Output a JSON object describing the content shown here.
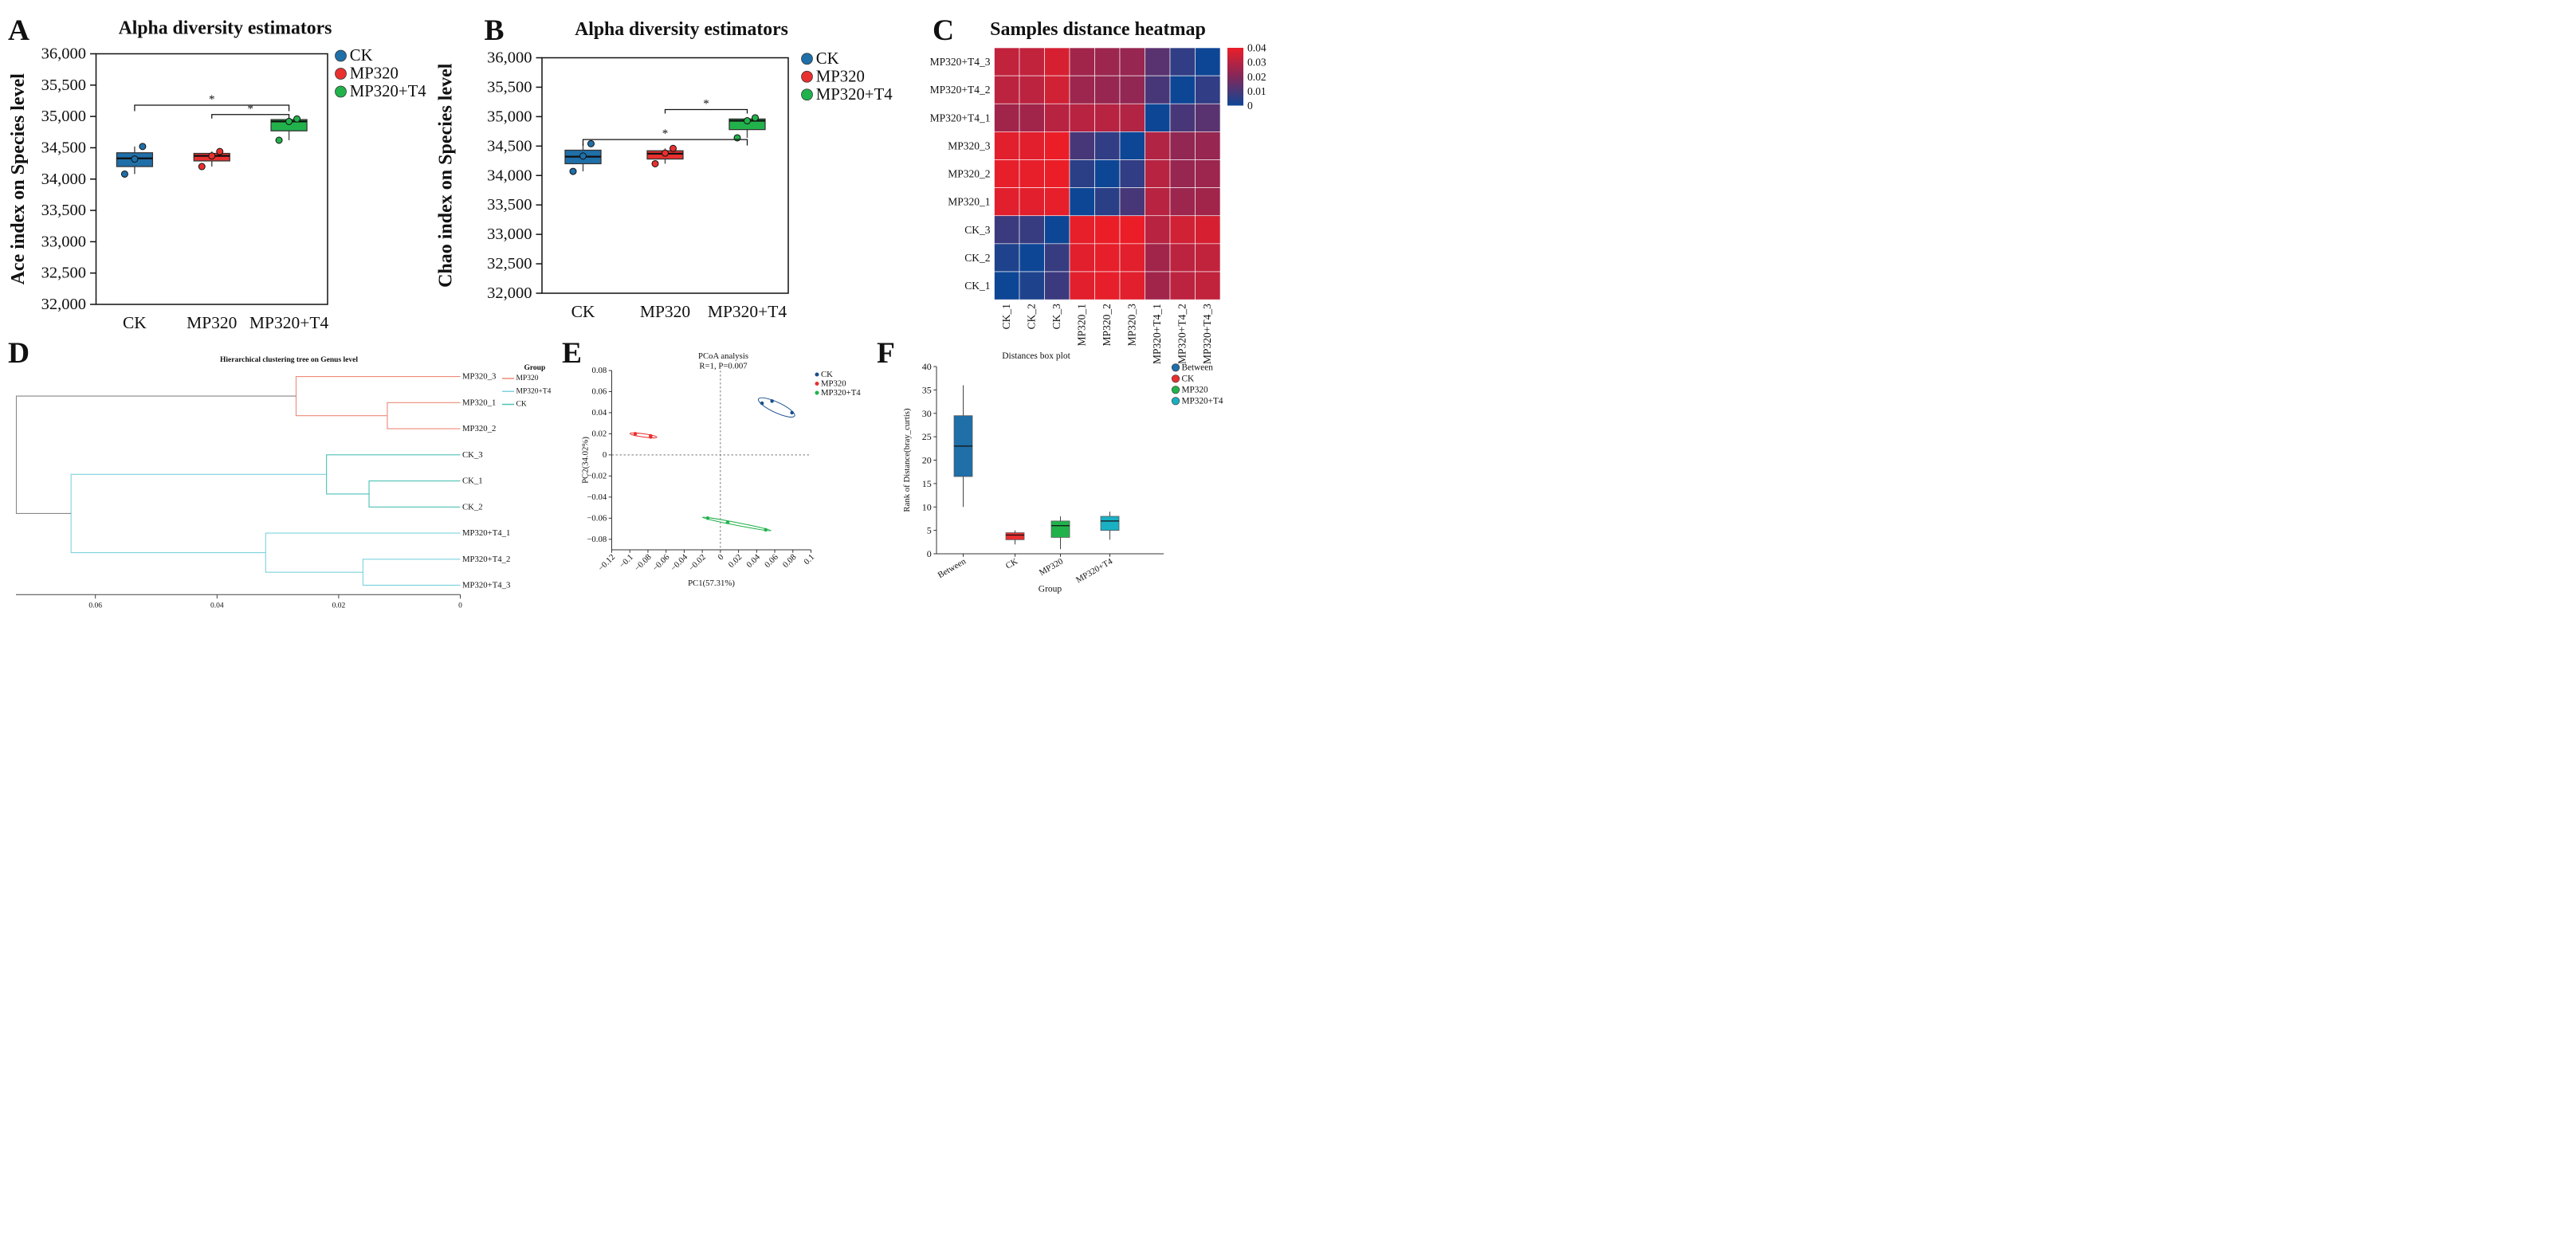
{
  "chart_data": [
    {
      "panel": "A",
      "type": "box",
      "title": "Alpha diversity estimators",
      "ylabel": "Ace index on Species level",
      "xlabel": "",
      "ylim": [
        32000,
        36000
      ],
      "y_ticks": [
        "32,000",
        "32,500",
        "33,000",
        "33,500",
        "34,000",
        "34,500",
        "35,000",
        "35,500",
        "36,000"
      ],
      "categories": [
        "CK",
        "MP320",
        "MP320+T4"
      ],
      "legend": [
        "CK",
        "MP320",
        "MP320+T4"
      ],
      "colors": [
        "#1f6fa8",
        "#e8302f",
        "#22b24c"
      ],
      "boxes": [
        {
          "group": "CK",
          "min": 34080,
          "q1": 34200,
          "median": 34330,
          "q3": 34420,
          "max": 34520,
          "points": [
            34080,
            34320,
            34520
          ]
        },
        {
          "group": "MP320",
          "min": 34200,
          "q1": 34290,
          "median": 34370,
          "q3": 34410,
          "max": 34440,
          "points": [
            34200,
            34370,
            34440
          ]
        },
        {
          "group": "MP320+T4",
          "min": 34620,
          "q1": 34770,
          "median": 34920,
          "q3": 34950,
          "max": 34960,
          "points": [
            34620,
            34920,
            34960
          ]
        }
      ],
      "annotations": [
        {
          "from": "CK",
          "to": "MP320+T4",
          "label": "*"
        },
        {
          "from": "MP320",
          "to": "MP320+T4",
          "label": "*"
        }
      ]
    },
    {
      "panel": "B",
      "type": "box",
      "title": "Alpha diversity estimators",
      "ylabel": "Chao index on Species level",
      "xlabel": "",
      "ylim": [
        32000,
        36000
      ],
      "y_ticks": [
        "32,000",
        "32,500",
        "33,000",
        "33,500",
        "34,000",
        "34,500",
        "35,000",
        "35,500",
        "36,000"
      ],
      "categories": [
        "CK",
        "MP320",
        "MP320+T4"
      ],
      "legend": [
        "CK",
        "MP320",
        "MP320+T4"
      ],
      "colors": [
        "#1f6fa8",
        "#e8302f",
        "#22b24c"
      ],
      "boxes": [
        {
          "group": "CK",
          "min": 34070,
          "q1": 34200,
          "median": 34320,
          "q3": 34430,
          "max": 34540,
          "points": [
            34070,
            34330,
            34540
          ]
        },
        {
          "group": "MP320",
          "min": 34200,
          "q1": 34280,
          "median": 34370,
          "q3": 34420,
          "max": 34460,
          "points": [
            34200,
            34380,
            34460
          ]
        },
        {
          "group": "MP320+T4",
          "min": 34640,
          "q1": 34780,
          "median": 34930,
          "q3": 34960,
          "max": 34980,
          "points": [
            34640,
            34930,
            34980
          ]
        }
      ],
      "annotations": [
        {
          "from": "CK",
          "to": "MP320+T4",
          "label": "*"
        },
        {
          "from": "MP320",
          "to": "MP320+T4",
          "label": "*"
        }
      ]
    },
    {
      "panel": "C",
      "type": "heatmap",
      "title": "Samples distance heatmap",
      "rows_top_to_bottom": [
        "MP320+T4_3",
        "MP320+T4_2",
        "MP320+T4_1",
        "MP320_3",
        "MP320_2",
        "MP320_1",
        "CK_3",
        "CK_2",
        "CK_1"
      ],
      "columns": [
        "CK_1",
        "CK_2",
        "CK_3",
        "MP320_1",
        "MP320_2",
        "MP320_3",
        "MP320+T4_1",
        "MP320+T4_2",
        "MP320+T4_3"
      ],
      "values": [
        [
          0.032,
          0.032,
          0.036,
          0.026,
          0.025,
          0.024,
          0.013,
          0.006,
          0.0
        ],
        [
          0.031,
          0.031,
          0.035,
          0.025,
          0.024,
          0.023,
          0.01,
          0.0,
          0.006
        ],
        [
          0.026,
          0.026,
          0.03,
          0.03,
          0.03,
          0.029,
          0.0,
          0.01,
          0.013
        ],
        [
          0.038,
          0.038,
          0.04,
          0.01,
          0.006,
          0.0,
          0.029,
          0.023,
          0.024
        ],
        [
          0.039,
          0.039,
          0.04,
          0.005,
          0.0,
          0.006,
          0.03,
          0.024,
          0.025
        ],
        [
          0.038,
          0.038,
          0.039,
          0.0,
          0.005,
          0.01,
          0.03,
          0.025,
          0.026
        ],
        [
          0.008,
          0.007,
          0.0,
          0.039,
          0.04,
          0.04,
          0.03,
          0.035,
          0.036
        ],
        [
          0.003,
          0.0,
          0.007,
          0.038,
          0.039,
          0.038,
          0.026,
          0.031,
          0.032
        ],
        [
          0.0,
          0.003,
          0.008,
          0.038,
          0.039,
          0.038,
          0.026,
          0.031,
          0.032
        ]
      ],
      "color_scale_min": 0,
      "color_scale_max": 0.04,
      "colorbar_ticks": [
        "0.04",
        "0.03",
        "0.02",
        "0.01",
        "0"
      ]
    },
    {
      "panel": "D",
      "type": "dendrogram",
      "title": "Hierarchical clustering tree on Genus level",
      "legend_title": "Group",
      "legend": [
        {
          "label": "MP320",
          "color": "#ef8a7a"
        },
        {
          "label": "MP320+T4",
          "color": "#7fd3dd"
        },
        {
          "label": "CK",
          "color": "#4fc1b6"
        }
      ],
      "leaves": [
        "MP320_3",
        "MP320_1",
        "MP320_2",
        "CK_3",
        "CK_1",
        "CK_2",
        "MP320+T4_1",
        "MP320+T4_2",
        "MP320+T4_3"
      ],
      "x_ticks": [
        "0.06",
        "0.04",
        "0.02",
        "0"
      ],
      "xlim": [
        0.073,
        0
      ],
      "merges": [
        {
          "a": "MP320_1",
          "b": "MP320_2",
          "height": 0.012,
          "color": "#ef8a7a"
        },
        {
          "a": "MP320_3",
          "b": "(MP320_1,MP320_2)",
          "height": 0.027,
          "color": "#ef8a7a"
        },
        {
          "a": "CK_1",
          "b": "CK_2",
          "height": 0.015,
          "color": "#4fc1b6"
        },
        {
          "a": "CK_3",
          "b": "(CK_1,CK_2)",
          "height": 0.022,
          "color": "#4fc1b6"
        },
        {
          "a": "MP320+T4_2",
          "b": "MP320+T4_3",
          "height": 0.016,
          "color": "#7fd3dd"
        },
        {
          "a": "MP320+T4_1",
          "b": "(MP320+T4_2,MP320+T4_3)",
          "height": 0.032,
          "color": "#7fd3dd"
        },
        {
          "a": "CK",
          "b": "MP320+T4",
          "height": 0.064,
          "color": "#7fd3dd"
        },
        {
          "a": "MP320",
          "b": "CK+MP320+T4",
          "height": 0.073,
          "color": "#888888"
        }
      ]
    },
    {
      "panel": "E",
      "type": "scatter",
      "title": "PCoA analysis",
      "subtitle": "R=1, P=0.007",
      "xlabel": "PC1(57.31%)",
      "ylabel": "PC2(34.02%)",
      "xlim": [
        -0.12,
        0.1
      ],
      "ylim": [
        -0.09,
        0.08
      ],
      "x_ticks": [
        "−0.12",
        "−0.1",
        "−0.08",
        "−0.06",
        "−0.04",
        "−0.02",
        "0",
        "0.02",
        "0.04",
        "0.06",
        "0.08",
        "0.1"
      ],
      "y_ticks": [
        "0.08",
        "0.06",
        "0.04",
        "0.02",
        "0",
        "−0.02",
        "−0.04",
        "−0.06",
        "−0.08"
      ],
      "legend": [
        "CK",
        "MP320",
        "MP320+T4"
      ],
      "series": [
        {
          "name": "CK",
          "color": "#1b4f8c",
          "points": [
            [
              0.046,
              0.049
            ],
            [
              0.057,
              0.051
            ],
            [
              0.079,
              0.04
            ]
          ]
        },
        {
          "name": "MP320",
          "color": "#e8302f",
          "points": [
            [
              -0.094,
              0.02
            ],
            [
              -0.077,
              0.018
            ],
            [
              -0.077,
              0.017
            ]
          ]
        },
        {
          "name": "MP320+T4",
          "color": "#22b24c",
          "points": [
            [
              -0.014,
              -0.06
            ],
            [
              0.008,
              -0.064
            ],
            [
              0.05,
              -0.071
            ]
          ]
        }
      ]
    },
    {
      "panel": "F",
      "type": "box",
      "title": "Distances box plot",
      "xlabel": "Group",
      "ylabel": "Rank of Distance(bray_curtis)",
      "ylim": [
        0,
        40
      ],
      "y_ticks": [
        "0",
        "5",
        "10",
        "15",
        "20",
        "25",
        "30",
        "35",
        "40"
      ],
      "categories": [
        "Between",
        "CK",
        "MP320",
        "MP320+T4"
      ],
      "legend": [
        "Between",
        "CK",
        "MP320",
        "MP320+T4"
      ],
      "colors": [
        "#1f6fa8",
        "#e8302f",
        "#22b24c",
        "#1ab0c4"
      ],
      "boxes": [
        {
          "group": "Between",
          "min": 10,
          "q1": 16.5,
          "median": 23,
          "q3": 29.5,
          "max": 36
        },
        {
          "group": "CK",
          "min": 2,
          "q1": 3,
          "median": 4,
          "q3": 4.5,
          "max": 5
        },
        {
          "group": "MP320",
          "min": 1,
          "q1": 3.5,
          "median": 6,
          "q3": 7,
          "max": 8
        },
        {
          "group": "MP320+T4",
          "min": 3,
          "q1": 5,
          "median": 7,
          "q3": 8,
          "max": 9
        }
      ]
    }
  ]
}
